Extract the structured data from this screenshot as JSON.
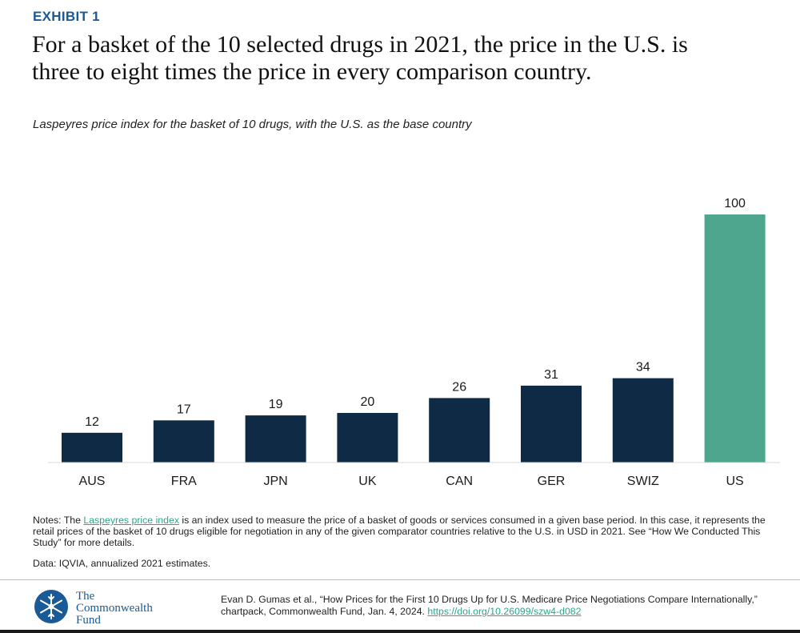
{
  "header": {
    "exhibit_label": "EXHIBIT 1",
    "title_line1": "For a basket of the 10 selected drugs in 2021, the price in the U.S. is",
    "title_line2": "three to eight times the price in every comparison country.",
    "subtitle": "Laspeyres price index for the basket of 10 drugs, with the U.S. as the base country"
  },
  "chart_data": {
    "type": "bar",
    "title": "For a basket of the 10 selected drugs in 2021, the price in the U.S. is three to eight times the price in every comparison country.",
    "subtitle": "Laspeyres price index for the basket of 10 drugs, with the U.S. as the base country",
    "categories": [
      "AUS",
      "FRA",
      "JPN",
      "UK",
      "CAN",
      "GER",
      "SWIZ",
      "US"
    ],
    "values": [
      12,
      17,
      19,
      20,
      26,
      31,
      34,
      100
    ],
    "xlabel": "",
    "ylabel": "",
    "ylim": [
      0,
      100
    ],
    "grid": false,
    "highlight_category": "US",
    "colors": {
      "default": "#0f2a44",
      "highlight": "#4ea68f"
    }
  },
  "notes": {
    "prefix": "Notes: The ",
    "link_text": "Laspeyres price index",
    "suffix": " is an index used to measure the price of a basket of goods or services consumed in a given base period. In this case, it represents the retail prices of the basket of 10 drugs eligible for negotiation in any of the given comparator countries relative to the U.S. in USD in 2021. See “How We Conducted This Study” for more details.",
    "data_source": "Data: IQVIA, annualized 2021 estimates."
  },
  "footer": {
    "logo_line1": "The",
    "logo_line2": "Commonwealth",
    "logo_line3": "Fund",
    "citation": "Evan D. Gumas et al., “How Prices for the First 10 Drugs Up for U.S. Medicare Price Negotiations Compare Internationally,” chartpack, Commonwealth Fund, Jan. 4, 2024. ",
    "doi_link": "https://doi.org/10.26099/szw4-d082"
  },
  "colors": {
    "accent_blue": "#1a5a96",
    "bar_navy": "#0f2a44",
    "bar_teal": "#4ea68f",
    "link_teal": "#2fa58c"
  }
}
